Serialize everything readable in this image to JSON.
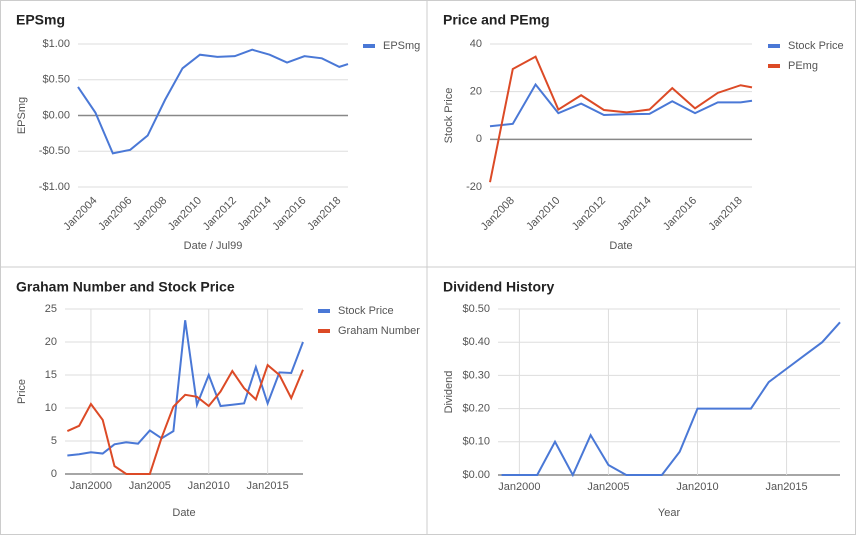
{
  "chart_data": [
    {
      "type": "line",
      "title": "EPSmg",
      "xlabel": "Date / Jul99",
      "ylabel": "EPSmg",
      "legend": "right",
      "x": [
        2003,
        2004,
        2005,
        2006,
        2007,
        2008,
        2009,
        2010,
        2011,
        2012,
        2013,
        2014,
        2015,
        2016,
        2017,
        2018,
        2018.5
      ],
      "series": [
        {
          "name": "EPSmg",
          "color": "#4a78d6",
          "values": [
            0.4,
            0.04,
            -0.53,
            -0.48,
            -0.28,
            0.22,
            0.66,
            0.85,
            0.82,
            0.83,
            0.92,
            0.85,
            0.74,
            0.83,
            0.8,
            0.68,
            0.72
          ]
        }
      ],
      "xlim": [
        2003,
        2018.5
      ],
      "xticks": [
        {
          "value": 2004,
          "label": "Jan2004"
        },
        {
          "value": 2006,
          "label": "Jan2006"
        },
        {
          "value": 2008,
          "label": "Jan2008"
        },
        {
          "value": 2010,
          "label": "Jan2010"
        },
        {
          "value": 2012,
          "label": "Jan2012"
        },
        {
          "value": 2014,
          "label": "Jan2014"
        },
        {
          "value": 2016,
          "label": "Jan2016"
        },
        {
          "value": 2018,
          "label": "Jan2018"
        }
      ],
      "ylim": [
        -1,
        1
      ],
      "yticks": [
        {
          "value": 1,
          "label": "$1.00"
        },
        {
          "value": 0.5,
          "label": "$0.50"
        },
        {
          "value": 0,
          "label": "$0.00"
        },
        {
          "value": -0.5,
          "label": "-$0.50"
        },
        {
          "value": -1,
          "label": "-$1.00"
        }
      ],
      "grid": true,
      "xgrid": false
    },
    {
      "type": "line",
      "title": "Price and PEmg",
      "xlabel": "Date",
      "ylabel": "Stock Price",
      "legend": "right",
      "x": [
        2007,
        2008,
        2009,
        2010,
        2011,
        2012,
        2013,
        2014,
        2015,
        2016,
        2017,
        2018,
        2018.5
      ],
      "series": [
        {
          "name": "Stock Price",
          "color": "#4a78d6",
          "values": [
            5.5,
            6.5,
            23,
            11,
            15,
            10.2,
            10.5,
            10.7,
            16,
            11,
            15.5,
            15.5,
            16.2
          ]
        },
        {
          "name": "PEmg",
          "color": "#dc4a26",
          "values": [
            -18,
            29.5,
            34.7,
            12.5,
            18.5,
            12.3,
            11.3,
            12.5,
            21.5,
            13,
            19.5,
            22.7,
            21.8
          ]
        }
      ],
      "xlim": [
        2007,
        2018.5
      ],
      "xticks": [
        {
          "value": 2008,
          "label": "Jan2008"
        },
        {
          "value": 2010,
          "label": "Jan2010"
        },
        {
          "value": 2012,
          "label": "Jan2012"
        },
        {
          "value": 2014,
          "label": "Jan2014"
        },
        {
          "value": 2016,
          "label": "Jan2016"
        },
        {
          "value": 2018,
          "label": "Jan2018"
        }
      ],
      "ylim": [
        -20,
        40
      ],
      "yticks": [
        40,
        20,
        0,
        -20
      ],
      "grid": true,
      "xgrid": false
    },
    {
      "type": "line",
      "title": "Graham Number and Stock Price",
      "xlabel": "Date",
      "ylabel": "Price",
      "legend": "right",
      "x": [
        1998,
        1999,
        2000,
        2001,
        2002,
        2003,
        2004,
        2005,
        2006,
        2007,
        2008,
        2009,
        2010,
        2011,
        2012,
        2013,
        2014,
        2015,
        2016,
        2017,
        2018
      ],
      "series": [
        {
          "name": "Stock Price",
          "color": "#4a78d6",
          "values": [
            2.8,
            3.0,
            3.3,
            3.1,
            4.5,
            4.8,
            4.6,
            6.6,
            5.4,
            6.5,
            23.3,
            10.5,
            15,
            10.3,
            10.5,
            10.7,
            16.2,
            10.7,
            15.4,
            15.3,
            20
          ]
        },
        {
          "name": "Graham Number",
          "color": "#dc4a26",
          "values": [
            6.5,
            7.3,
            10.6,
            8.2,
            1.2,
            0,
            0,
            0,
            5.5,
            10.2,
            12,
            11.7,
            10.3,
            12.5,
            15.6,
            13,
            11.3,
            16.5,
            15,
            11.5,
            15.8
          ]
        }
      ],
      "xlim": [
        1997.8,
        2018
      ],
      "xticks": [
        {
          "value": 2000,
          "label": "Jan2000"
        },
        {
          "value": 2005,
          "label": "Jan2005"
        },
        {
          "value": 2010,
          "label": "Jan2010"
        },
        {
          "value": 2015,
          "label": "Jan2015"
        }
      ],
      "ylim": [
        0,
        25
      ],
      "yticks": [
        25,
        20,
        15,
        10,
        5,
        0
      ],
      "grid": true,
      "xgrid": true
    },
    {
      "type": "line",
      "title": "Dividend History",
      "xlabel": "Year",
      "ylabel": "Dividend",
      "x": [
        1999,
        2000,
        2001,
        2002,
        2003,
        2004,
        2005,
        2006,
        2007,
        2008,
        2009,
        2010,
        2011,
        2012,
        2013,
        2014,
        2015,
        2016,
        2017,
        2018
      ],
      "series": [
        {
          "name": "Dividend",
          "color": "#4a78d6",
          "values": [
            0,
            0,
            0,
            0.1,
            0,
            0.12,
            0.03,
            0,
            0,
            0,
            0.07,
            0.2,
            0.2,
            0.2,
            0.2,
            0.28,
            0.32,
            0.36,
            0.4,
            0.46
          ]
        }
      ],
      "xlim": [
        1998.8,
        2018
      ],
      "xticks": [
        {
          "value": 2000,
          "label": "Jan2000"
        },
        {
          "value": 2005,
          "label": "Jan2005"
        },
        {
          "value": 2010,
          "label": "Jan2010"
        },
        {
          "value": 2015,
          "label": "Jan2015"
        }
      ],
      "ylim": [
        0,
        0.5
      ],
      "yticks": [
        {
          "value": 0.5,
          "label": "$0.50"
        },
        {
          "value": 0.4,
          "label": "$0.40"
        },
        {
          "value": 0.3,
          "label": "$0.30"
        },
        {
          "value": 0.2,
          "label": "$0.20"
        },
        {
          "value": 0.1,
          "label": "$0.10"
        },
        {
          "value": 0,
          "label": "$0.00"
        }
      ],
      "grid": true,
      "xgrid": true
    }
  ]
}
